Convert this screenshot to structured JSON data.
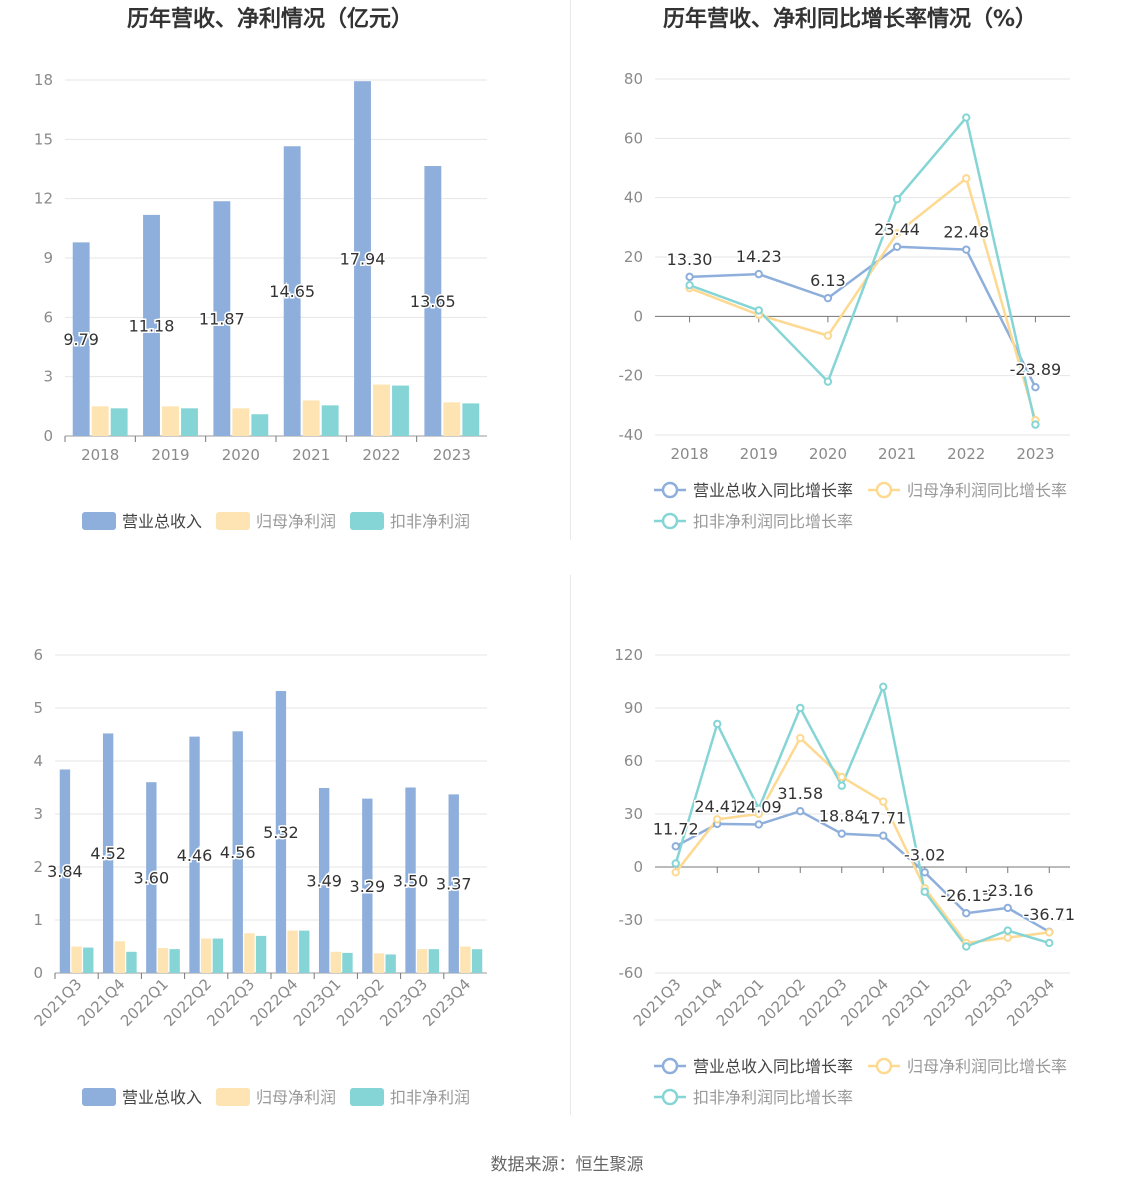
{
  "source": "数据来源：恒生聚源",
  "colors": {
    "revenue": "#8eaedb",
    "net_profit": "#fde4b2",
    "deducted_profit": "#86d5d6",
    "revenue_line": "#8eaedb",
    "net_line": "#fdd991",
    "deducted_line": "#86d5d6"
  },
  "chart_data": [
    {
      "type": "bar",
      "title": "历年营收、净利情况（亿元）",
      "categories": [
        "2018",
        "2019",
        "2020",
        "2021",
        "2022",
        "2023"
      ],
      "ylim": [
        0,
        18
      ],
      "yticks": [
        "0",
        "3",
        "6",
        "9",
        "12",
        "15",
        "18"
      ],
      "series": [
        {
          "name": "营业总收入",
          "values": [
            9.79,
            11.18,
            11.87,
            14.65,
            17.94,
            13.65
          ],
          "labels": [
            "9.79",
            "11.18",
            "11.87",
            "14.65",
            "17.94",
            "13.65"
          ]
        },
        {
          "name": "归母净利润",
          "values": [
            1.5,
            1.5,
            1.4,
            1.8,
            2.6,
            1.7
          ]
        },
        {
          "name": "扣非净利润",
          "values": [
            1.4,
            1.4,
            1.1,
            1.55,
            2.55,
            1.65
          ]
        }
      ],
      "legend": "bottom"
    },
    {
      "type": "line",
      "title": "历年营收、净利同比增长率情况（%）",
      "categories": [
        "2018",
        "2019",
        "2020",
        "2021",
        "2022",
        "2023"
      ],
      "ylim": [
        -40,
        80
      ],
      "yticks": [
        "-40",
        "-20",
        "0",
        "20",
        "40",
        "60",
        "80"
      ],
      "series": [
        {
          "name": "营业总收入同比增长率",
          "values": [
            13.3,
            14.23,
            6.13,
            23.44,
            22.48,
            -23.89
          ],
          "labels": [
            "13.30",
            "14.23",
            "6.13",
            "23.44",
            "22.48",
            "-23.89"
          ]
        },
        {
          "name": "归母净利润同比增长率",
          "values": [
            9.5,
            0.5,
            -6.5,
            28,
            46.5,
            -35
          ]
        },
        {
          "name": "扣非净利润同比增长率",
          "values": [
            10.5,
            2,
            -22,
            39.5,
            67,
            -36.5
          ]
        }
      ],
      "legend": "bottom"
    },
    {
      "type": "bar",
      "title": "营收、净利季度变动情况（亿元）",
      "categories": [
        "2021Q3",
        "2021Q4",
        "2022Q1",
        "2022Q2",
        "2022Q3",
        "2022Q4",
        "2023Q1",
        "2023Q2",
        "2023Q3",
        "2023Q4"
      ],
      "ylim": [
        0,
        6
      ],
      "yticks": [
        "0",
        "1",
        "2",
        "3",
        "4",
        "5",
        "6"
      ],
      "series": [
        {
          "name": "营业总收入",
          "values": [
            3.84,
            4.52,
            3.6,
            4.46,
            4.56,
            5.32,
            3.49,
            3.29,
            3.5,
            3.37
          ],
          "labels": [
            "3.84",
            "4.52",
            "3.60",
            "4.46",
            "4.56",
            "5.32",
            "3.49",
            "3.29",
            "3.50",
            "3.37"
          ]
        },
        {
          "name": "归母净利润",
          "values": [
            0.5,
            0.6,
            0.47,
            0.65,
            0.75,
            0.8,
            0.4,
            0.37,
            0.45,
            0.5
          ]
        },
        {
          "name": "扣非净利润",
          "values": [
            0.48,
            0.4,
            0.45,
            0.65,
            0.7,
            0.8,
            0.38,
            0.35,
            0.45,
            0.45
          ]
        }
      ],
      "legend": "bottom"
    },
    {
      "type": "line",
      "title": "营收、净利同比增长率季度变动情况（%）",
      "categories": [
        "2021Q3",
        "2021Q4",
        "2022Q1",
        "2022Q2",
        "2022Q3",
        "2022Q4",
        "2023Q1",
        "2023Q2",
        "2023Q3",
        "2023Q4"
      ],
      "ylim": [
        -60,
        120
      ],
      "yticks": [
        "-60",
        "-30",
        "0",
        "30",
        "60",
        "90",
        "120"
      ],
      "series": [
        {
          "name": "营业总收入同比增长率",
          "values": [
            11.72,
            24.41,
            24.09,
            31.58,
            18.84,
            17.71,
            -3.02,
            -26.15,
            -23.16,
            -36.71
          ],
          "labels": [
            "11.72",
            "24.41",
            "24.09",
            "31.58",
            "18.84",
            "17.71",
            "-3.02",
            "-26.15",
            "-23.16",
            "-36.71"
          ]
        },
        {
          "name": "归母净利润同比增长率",
          "values": [
            -3,
            27,
            30,
            73,
            51,
            37,
            -12,
            -43,
            -40,
            -37
          ]
        },
        {
          "name": "扣非净利润同比增长率",
          "values": [
            2,
            81,
            33,
            90,
            46,
            102,
            -14,
            -45,
            -36,
            -43
          ]
        }
      ],
      "legend": "bottom"
    }
  ]
}
